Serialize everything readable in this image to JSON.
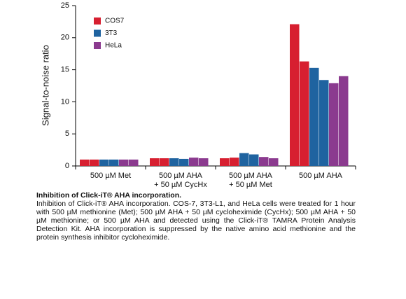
{
  "chart_data": {
    "type": "grouped-replicate-bar",
    "ylabel": "Signal-to-noise ratio",
    "categories": [
      [
        "500 µM Met"
      ],
      [
        "500 µM AHA",
        "+ 50 µM CycHx"
      ],
      [
        "500 µM AHA",
        "+ 50 µM Met"
      ],
      [
        "500 µM AHA"
      ]
    ],
    "series": [
      {
        "name": "COS7",
        "color": "#d71f30",
        "values": [
          [
            1.0,
            1.0
          ],
          [
            1.2,
            1.2
          ],
          [
            1.2,
            1.3
          ],
          [
            22.1,
            16.3
          ]
        ]
      },
      {
        "name": "3T3",
        "color": "#1f63a0",
        "values": [
          [
            1.0,
            1.0
          ],
          [
            1.2,
            1.1
          ],
          [
            2.0,
            1.8
          ],
          [
            15.3,
            13.4
          ]
        ]
      },
      {
        "name": "HeLa",
        "color": "#8b3a8f",
        "values": [
          [
            1.0,
            1.0
          ],
          [
            1.3,
            1.2
          ],
          [
            1.4,
            1.2
          ],
          [
            12.9,
            14.0
          ]
        ]
      }
    ],
    "ylim": [
      0,
      25
    ],
    "yticks": [
      0,
      5,
      10,
      15,
      20,
      25
    ],
    "legend": "upper-left"
  },
  "caption": {
    "title": "Inhibition of Click-iT® AHA incorporation.",
    "text": "Inhibition of Click-iT® AHA incorporation. COS-7, 3T3-L1, and HeLa cells were treated for 1 hour with 500 µM methionine (Met); 500 µM AHA + 50 µM cycloheximide (CycHx); 500 µM AHA + 50 µM methionine; or 500 µM AHA and detected using the Click-iT® TAMRA Protein Analysis Detection Kit. AHA incorporation is suppressed by the native amino acid methionine and the protein synthesis inhibitor cycloheximide."
  }
}
